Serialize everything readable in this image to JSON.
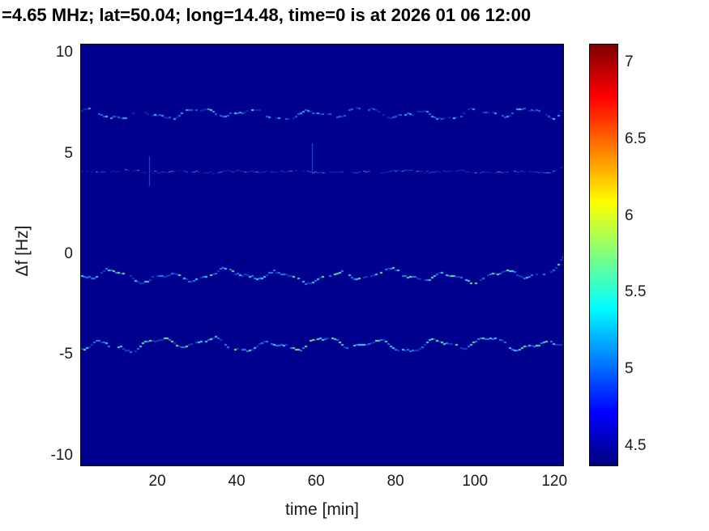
{
  "chart_data": {
    "type": "heatmap",
    "title": "=4.65 MHz;  lat=50.04; long=14.48, time=0 is at 2026 01 06 12:00",
    "xlabel": "time [min]",
    "ylabel": "Δf [Hz]",
    "xlim": [
      0.8,
      122.2
    ],
    "ylim": [
      -10.45,
      10.45
    ],
    "xticks": [
      20,
      40,
      60,
      80,
      100,
      120
    ],
    "yticks": [
      -10,
      -5,
      0,
      5,
      10
    ],
    "grid": false,
    "background": {
      "value_floor": 4.4,
      "color": "#00008f"
    },
    "colorbar": {
      "position": "right",
      "ticks": [
        4.5,
        5,
        5.5,
        6,
        6.5,
        7
      ],
      "vmin": 4.38,
      "vmax": 7.12,
      "colormap": "jet"
    },
    "traces": [
      {
        "name": "doppler-trace-plus7",
        "df_center": 7.05,
        "wiggle_amp_hz": 0.35,
        "duty": 0.72,
        "thickness": 2,
        "hook": 0.7,
        "phases": [
          0.7,
          2.1,
          4.6
        ],
        "palette": [
          "#0c2fae",
          "#2b63e0",
          "#38a8e8",
          "#45d9e0"
        ],
        "weights": [
          0.45,
          0.3,
          0.17,
          0.08
        ]
      },
      {
        "name": "doppler-trace-plus4",
        "df_center": 4.15,
        "wiggle_amp_hz": 0.07,
        "duty": 0.8,
        "thickness": 1,
        "hook": 0.3,
        "phases": [
          2.3,
          5.8,
          0.4
        ],
        "palette": [
          "#1232a8",
          "#2a55cc",
          "#3f8de0"
        ],
        "weights": [
          0.55,
          0.3,
          0.15
        ],
        "spikes": [
          {
            "t": 18,
            "df_lo": 3.4,
            "df_hi": 4.9
          },
          {
            "t": 59,
            "df_lo": 4.15,
            "df_hi": 5.55
          }
        ]
      },
      {
        "name": "doppler-trace-minus1",
        "df_center": -1.0,
        "wiggle_amp_hz": 0.4,
        "duty": 0.85,
        "thickness": 2,
        "hook": 0.9,
        "phases": [
          3.9,
          1.1,
          0.6
        ],
        "palette": [
          "#1440c0",
          "#2f7be6",
          "#3fd4f5",
          "#7ee87f"
        ],
        "weights": [
          0.32,
          0.3,
          0.22,
          0.16
        ]
      },
      {
        "name": "doppler-trace-minus4p5",
        "df_center": -4.4,
        "wiggle_amp_hz": 0.45,
        "duty": 0.85,
        "thickness": 2,
        "hook": 0.5,
        "phases": [
          5.2,
          3.3,
          2.9
        ],
        "palette": [
          "#1440c0",
          "#2f7be6",
          "#3fd4f5",
          "#7ee87f"
        ],
        "weights": [
          0.3,
          0.3,
          0.22,
          0.18
        ]
      }
    ]
  }
}
